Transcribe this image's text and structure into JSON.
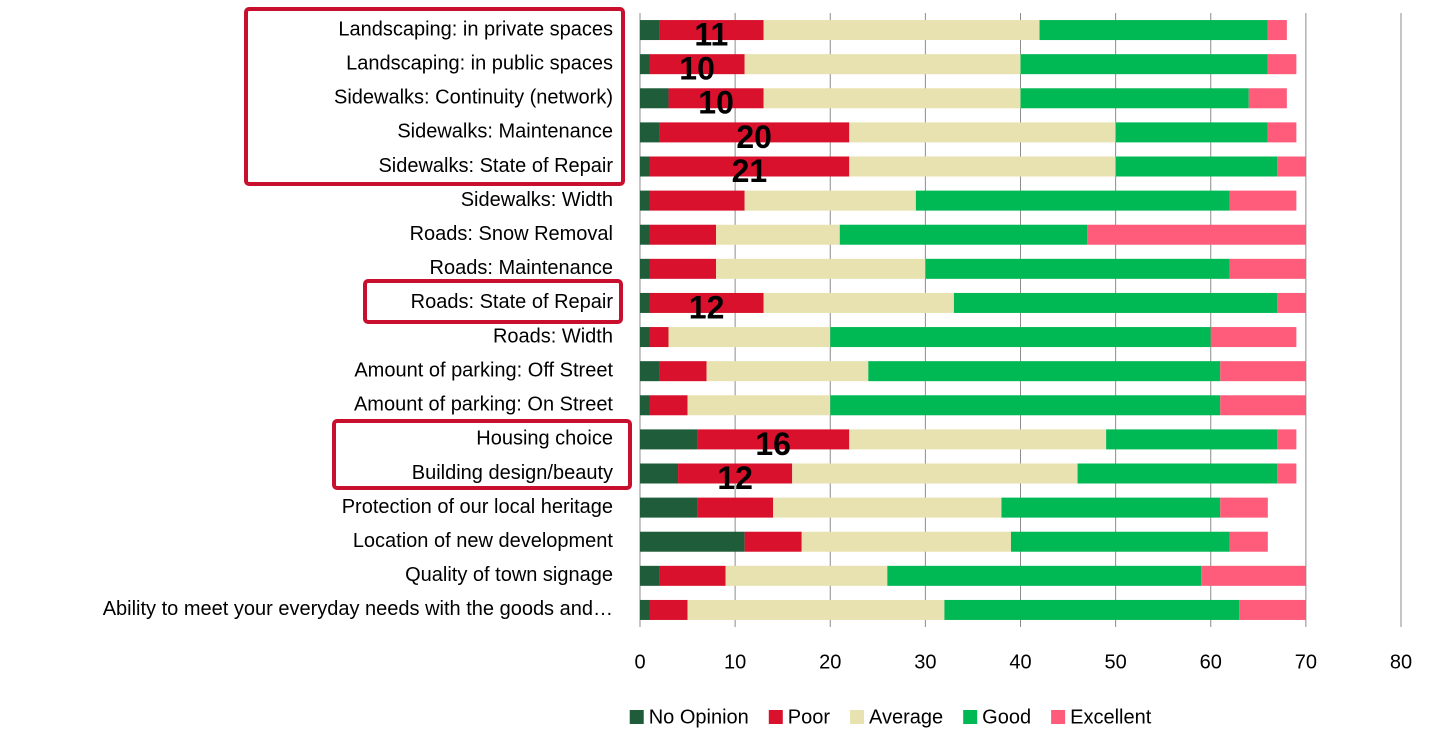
{
  "chart_data": {
    "type": "stacked_barh",
    "categories": [
      "Landscaping: in private spaces",
      "Landscaping: in public spaces",
      "Sidewalks: Continuity (network)",
      "Sidewalks: Maintenance",
      "Sidewalks: State of Repair",
      "Sidewalks: Width",
      "Roads: Snow Removal",
      "Roads: Maintenance",
      "Roads: State of Repair",
      "Roads: Width",
      "Amount of parking: Off Street",
      "Amount of parking: On Street",
      "Housing choice",
      "Building design/beauty",
      "Protection of our local heritage",
      "Location of new development",
      "Quality of town signage",
      "Ability to meet your everyday needs with the goods and…"
    ],
    "series": [
      {
        "name": "No Opinion",
        "color": "#1e5c3a",
        "values": [
          2,
          1,
          3,
          2,
          1,
          1,
          1,
          1,
          1,
          1,
          2,
          1,
          6,
          4,
          6,
          11,
          2,
          1
        ]
      },
      {
        "name": "Poor",
        "color": "#d9112d",
        "values": [
          11,
          10,
          10,
          20,
          21,
          10,
          7,
          7,
          12,
          2,
          5,
          4,
          16,
          12,
          8,
          6,
          7,
          4
        ],
        "value_labels": [
          "11",
          "10",
          "10",
          "20",
          "21",
          null,
          null,
          null,
          "12",
          null,
          null,
          null,
          "16",
          "12",
          null,
          null,
          null,
          null
        ]
      },
      {
        "name": "Average",
        "color": "#e8e2b0",
        "values": [
          29,
          29,
          27,
          28,
          28,
          18,
          13,
          22,
          20,
          17,
          17,
          15,
          27,
          30,
          24,
          22,
          17,
          27
        ]
      },
      {
        "name": "Good",
        "color": "#00b954",
        "values": [
          24,
          26,
          24,
          16,
          17,
          33,
          26,
          32,
          34,
          40,
          37,
          41,
          18,
          21,
          23,
          23,
          33,
          31
        ]
      },
      {
        "name": "Excellent",
        "color": "#ff5b7a",
        "values": [
          2,
          3,
          4,
          3,
          3,
          7,
          23,
          8,
          3,
          9,
          9,
          9,
          2,
          2,
          5,
          4,
          11,
          7
        ]
      }
    ],
    "xlim": [
      0,
      80
    ],
    "xticks": [
      0,
      10,
      20,
      30,
      40,
      50,
      60,
      70,
      80
    ],
    "grid": true,
    "legend": "bottom"
  }
}
